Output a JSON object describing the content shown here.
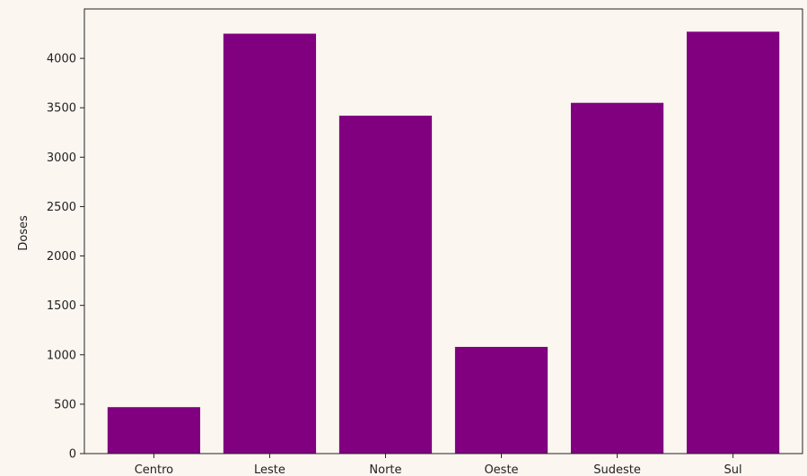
{
  "colors": {
    "background": "#fcf6f1",
    "bar": "#800080",
    "axis": "#222222"
  },
  "chart_data": {
    "type": "bar",
    "title": "",
    "xlabel": "",
    "ylabel": "Doses",
    "categories": [
      "Centro",
      "Leste",
      "Norte",
      "Oeste",
      "Sudeste",
      "Sul"
    ],
    "values": [
      470,
      4250,
      3420,
      1080,
      3550,
      4270
    ],
    "ylim": [
      0,
      4500
    ],
    "yticks": [
      0,
      500,
      1000,
      1500,
      2000,
      2500,
      3000,
      3500,
      4000
    ],
    "grid": false,
    "legend": "none"
  }
}
